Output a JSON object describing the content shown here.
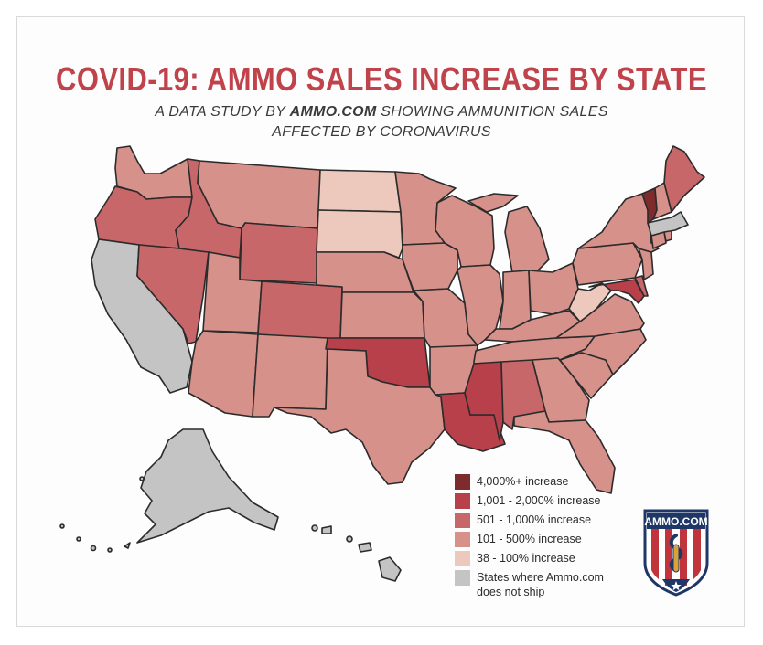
{
  "header": {
    "title": "COVID-19: AMMO SALES INCREASE BY STATE",
    "subtitle_prefix": "A DATA STUDY BY",
    "subtitle_brand": "AMMO.COM",
    "subtitle_suffix": "SHOWING AMMUNITION SALES",
    "subtitle_line2": "AFFECTED BY CORONAVIRUS"
  },
  "colors": {
    "4000_plus": "#7e2b2e",
    "1001_2000": "#b8404a",
    "501_1000": "#c8676a",
    "101_500": "#d6918a",
    "38_100": "#ecc8bd",
    "no_ship": "#c4c4c4",
    "title": "#c0424a"
  },
  "legend": [
    {
      "key": "4000_plus",
      "label": "4,000%+ increase"
    },
    {
      "key": "1001_2000",
      "label": "1,001 - 2,000% increase"
    },
    {
      "key": "501_1000",
      "label": "501 - 1,000% increase"
    },
    {
      "key": "101_500",
      "label": "101 - 500% increase"
    },
    {
      "key": "38_100",
      "label": "38 - 100% increase"
    },
    {
      "key": "no_ship",
      "label": "States where Ammo.com does not ship"
    }
  ],
  "states": {
    "vermont": "4000_plus",
    "oklahoma": "1001_2000",
    "louisiana": "1001_2000",
    "mississippi": "1001_2000",
    "maryland": "1001_2000",
    "oregon": "501_1000",
    "idaho": "501_1000",
    "nevada": "501_1000",
    "wyoming": "501_1000",
    "colorado": "501_1000",
    "alabama": "501_1000",
    "maine": "501_1000",
    "delaware": "501_1000",
    "north_dakota": "38_100",
    "south_dakota": "38_100",
    "west_virginia": "38_100",
    "california": "no_ship",
    "alaska": "no_ship",
    "hawaii": "no_ship",
    "massachusetts": "no_ship",
    "washington": "101_500",
    "montana": "101_500",
    "utah": "101_500",
    "arizona": "101_500",
    "new_mexico": "101_500",
    "texas": "101_500",
    "nebraska": "101_500",
    "kansas": "101_500",
    "minnesota": "101_500",
    "iowa": "101_500",
    "missouri": "101_500",
    "arkansas": "101_500",
    "wisconsin": "101_500",
    "illinois": "101_500",
    "michigan": "101_500",
    "indiana": "101_500",
    "ohio": "101_500",
    "kentucky": "101_500",
    "tennessee": "101_500",
    "georgia": "101_500",
    "florida": "101_500",
    "south_carolina": "101_500",
    "north_carolina": "101_500",
    "virginia": "101_500",
    "pennsylvania": "101_500",
    "new_york": "101_500",
    "new_jersey": "101_500",
    "connecticut": "101_500",
    "rhode_island": "101_500",
    "new_hampshire": "101_500"
  },
  "logo": {
    "text": "AMMO.COM",
    "navy": "#1f3766",
    "red": "#c0353c"
  }
}
